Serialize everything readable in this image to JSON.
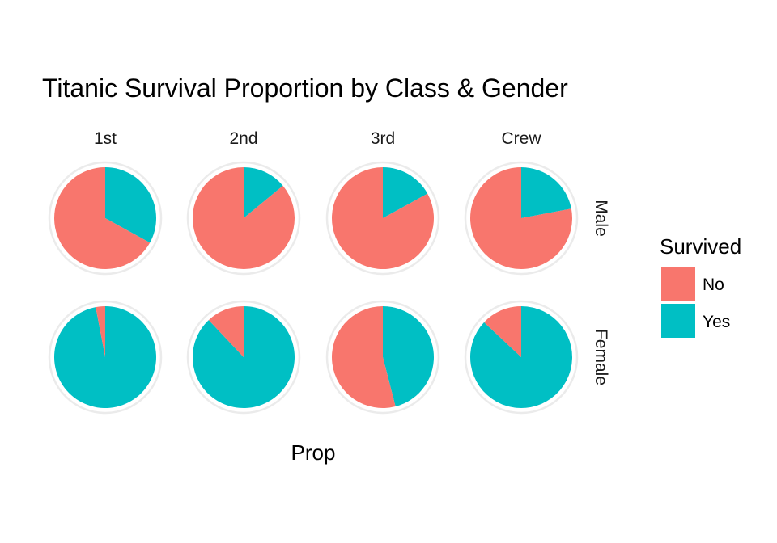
{
  "chart_data": {
    "type": "pie",
    "title": "Titanic Survival Proportion by Class & Gender",
    "xlabel": "Prop",
    "columns": [
      "1st",
      "2nd",
      "3rd",
      "Crew"
    ],
    "rows": [
      "Male",
      "Female"
    ],
    "legend": {
      "title": "Survived",
      "position": "right",
      "entries": [
        {
          "label": "No",
          "color": "#F8766D"
        },
        {
          "label": "Yes",
          "color": "#00BFC4"
        }
      ]
    },
    "facets": [
      {
        "column": "1st",
        "row": "Male",
        "values": {
          "No": 0.67,
          "Yes": 0.33
        }
      },
      {
        "column": "2nd",
        "row": "Male",
        "values": {
          "No": 0.86,
          "Yes": 0.14
        }
      },
      {
        "column": "3rd",
        "row": "Male",
        "values": {
          "No": 0.83,
          "Yes": 0.17
        }
      },
      {
        "column": "Crew",
        "row": "Male",
        "values": {
          "No": 0.78,
          "Yes": 0.22
        }
      },
      {
        "column": "1st",
        "row": "Female",
        "values": {
          "No": 0.03,
          "Yes": 0.97
        }
      },
      {
        "column": "2nd",
        "row": "Female",
        "values": {
          "No": 0.12,
          "Yes": 0.88
        }
      },
      {
        "column": "3rd",
        "row": "Female",
        "values": {
          "No": 0.54,
          "Yes": 0.46
        }
      },
      {
        "column": "Crew",
        "row": "Female",
        "values": {
          "No": 0.13,
          "Yes": 0.87
        }
      }
    ]
  }
}
